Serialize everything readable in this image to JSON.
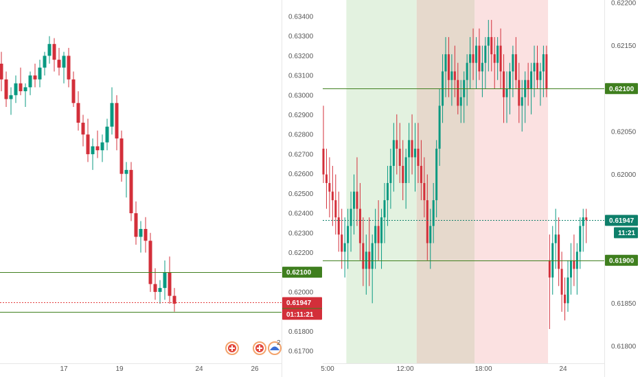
{
  "colors": {
    "up": "#089981",
    "down": "#d32f3a",
    "level": "#3f7f1e",
    "price_line_left": "#e23b3b",
    "price_line_right": "#0e7f6a",
    "session_1": "#e3f2e0",
    "session_2": "#e6d9cc",
    "session_3": "#fbe1e1",
    "axis_text": "#555555",
    "divider": "#e6e6e6"
  },
  "chart_data": [
    {
      "type": "candlestick",
      "panel": "left",
      "y_axis_ticks": [
        "0.63400",
        "0.63300",
        "0.63200",
        "0.63100",
        "0.63000",
        "0.62900",
        "0.62800",
        "0.62700",
        "0.62600",
        "0.62500",
        "0.62400",
        "0.62300",
        "0.62200",
        "0.62100",
        "0.62000",
        "0.61900",
        "0.61800",
        "0.61700"
      ],
      "x_axis_ticks": [
        "17",
        "19",
        "24",
        "26"
      ],
      "ylim": [
        0.6166,
        0.6346
      ],
      "candles": [
        [
          0.6322,
          0.6326,
          0.6308,
          0.6314
        ],
        [
          0.6314,
          0.6318,
          0.6305,
          0.6316
        ],
        [
          0.6316,
          0.6322,
          0.6302,
          0.6308
        ],
        [
          0.6308,
          0.6312,
          0.6294,
          0.6298
        ],
        [
          0.6298,
          0.6304,
          0.629,
          0.63
        ],
        [
          0.63,
          0.631,
          0.6296,
          0.6306
        ],
        [
          0.6306,
          0.6314,
          0.63,
          0.6302
        ],
        [
          0.6302,
          0.6306,
          0.6294,
          0.6304
        ],
        [
          0.6304,
          0.6312,
          0.63,
          0.631
        ],
        [
          0.631,
          0.6316,
          0.6304,
          0.6308
        ],
        [
          0.6308,
          0.6318,
          0.6304,
          0.6314
        ],
        [
          0.6314,
          0.6322,
          0.631,
          0.632
        ],
        [
          0.632,
          0.633,
          0.6316,
          0.6326
        ],
        [
          0.6326,
          0.6329,
          0.6312,
          0.6318
        ],
        [
          0.6318,
          0.6324,
          0.631,
          0.6314
        ],
        [
          0.6314,
          0.6322,
          0.6306,
          0.632
        ],
        [
          0.632,
          0.6324,
          0.6304,
          0.6308
        ],
        [
          0.6308,
          0.6312,
          0.6294,
          0.6296
        ],
        [
          0.6296,
          0.6302,
          0.6282,
          0.6286
        ],
        [
          0.6286,
          0.629,
          0.6274,
          0.628
        ],
        [
          0.628,
          0.6288,
          0.6266,
          0.627
        ],
        [
          0.627,
          0.6278,
          0.6262,
          0.6274
        ],
        [
          0.6274,
          0.6282,
          0.6268,
          0.6272
        ],
        [
          0.6272,
          0.628,
          0.6266,
          0.6276
        ],
        [
          0.6276,
          0.6288,
          0.6272,
          0.6284
        ],
        [
          0.6284,
          0.6304,
          0.628,
          0.6296
        ],
        [
          0.6296,
          0.63,
          0.6272,
          0.6278
        ],
        [
          0.6278,
          0.6282,
          0.6256,
          0.626
        ],
        [
          0.626,
          0.6266,
          0.6248,
          0.6262
        ],
        [
          0.6262,
          0.6266,
          0.6236,
          0.624
        ],
        [
          0.624,
          0.6246,
          0.6224,
          0.6228
        ],
        [
          0.6228,
          0.6236,
          0.622,
          0.6232
        ],
        [
          0.6232,
          0.6238,
          0.622,
          0.6226
        ],
        [
          0.6226,
          0.623,
          0.62,
          0.6204
        ],
        [
          0.6204,
          0.6212,
          0.6196,
          0.62
        ],
        [
          0.62,
          0.6206,
          0.6194,
          0.6202
        ],
        [
          0.6202,
          0.6216,
          0.6196,
          0.621
        ],
        [
          0.621,
          0.6218,
          0.6194,
          0.6198
        ],
        [
          0.6198,
          0.6202,
          0.619,
          0.6194
        ]
      ],
      "levels": [
        {
          "price": 0.621,
          "label": "0.62100"
        },
        {
          "price": 0.619,
          "label": "0.61900"
        }
      ],
      "current_price": {
        "price": 0.61947,
        "label": "0.61947",
        "countdown": "01:11:21"
      }
    },
    {
      "type": "candlestick",
      "panel": "right",
      "y_axis_ticks": [
        "0.62200",
        "0.62150",
        "0.62100",
        "0.62050",
        "0.62000",
        "0.61950",
        "0.61900",
        "0.61850",
        "0.61800"
      ],
      "x_axis_ticks": [
        "5:00",
        "12:00",
        "18:00",
        "24"
      ],
      "ylim": [
        0.61774,
        0.62208
      ],
      "sessions": [
        {
          "from": 8,
          "to": 31,
          "color_key": "session_1"
        },
        {
          "from": 31,
          "to": 50,
          "color_key": "session_2"
        },
        {
          "from": 50,
          "to": 74,
          "color_key": "session_3"
        }
      ],
      "candles": [
        [
          0.6203,
          0.6208,
          0.6199,
          0.62
        ],
        [
          0.62,
          0.6203,
          0.6196,
          0.6199
        ],
        [
          0.6199,
          0.6202,
          0.6195,
          0.6198
        ],
        [
          0.6198,
          0.6201,
          0.6194,
          0.6197
        ],
        [
          0.6197,
          0.62,
          0.6193,
          0.6195
        ],
        [
          0.6195,
          0.6198,
          0.6191,
          0.6193
        ],
        [
          0.6193,
          0.6196,
          0.6189,
          0.6191
        ],
        [
          0.6191,
          0.6195,
          0.6188,
          0.6192
        ],
        [
          0.6192,
          0.6196,
          0.6189,
          0.6194
        ],
        [
          0.6194,
          0.6198,
          0.6191,
          0.6196
        ],
        [
          0.6196,
          0.62,
          0.6193,
          0.6198
        ],
        [
          0.6198,
          0.6202,
          0.6194,
          0.6196
        ],
        [
          0.6196,
          0.6199,
          0.619,
          0.6192
        ],
        [
          0.6192,
          0.6195,
          0.6187,
          0.6189
        ],
        [
          0.6189,
          0.6193,
          0.6186,
          0.6191
        ],
        [
          0.6191,
          0.6195,
          0.6187,
          0.6189
        ],
        [
          0.6189,
          0.6193,
          0.6185,
          0.6192
        ],
        [
          0.6192,
          0.6196,
          0.6189,
          0.6194
        ],
        [
          0.6194,
          0.6197,
          0.619,
          0.6192
        ],
        [
          0.6192,
          0.6196,
          0.6189,
          0.6195
        ],
        [
          0.6195,
          0.6199,
          0.6192,
          0.6197
        ],
        [
          0.6197,
          0.6201,
          0.6194,
          0.6199
        ],
        [
          0.6199,
          0.6203,
          0.6196,
          0.6201
        ],
        [
          0.6201,
          0.6206,
          0.6198,
          0.6204
        ],
        [
          0.6204,
          0.6207,
          0.62,
          0.6203
        ],
        [
          0.6203,
          0.6206,
          0.6199,
          0.6201
        ],
        [
          0.6201,
          0.6204,
          0.6197,
          0.6199
        ],
        [
          0.6199,
          0.6203,
          0.6196,
          0.6202
        ],
        [
          0.6202,
          0.6206,
          0.6199,
          0.6204
        ],
        [
          0.6204,
          0.6207,
          0.62,
          0.6202
        ],
        [
          0.6202,
          0.6206,
          0.6198,
          0.6203
        ],
        [
          0.6203,
          0.6206,
          0.6199,
          0.6201
        ],
        [
          0.6201,
          0.6204,
          0.6197,
          0.6199
        ],
        [
          0.6199,
          0.6202,
          0.6195,
          0.6197
        ],
        [
          0.6197,
          0.62,
          0.619,
          0.6192
        ],
        [
          0.6192,
          0.6196,
          0.6189,
          0.6194
        ],
        [
          0.6194,
          0.6199,
          0.6192,
          0.6197
        ],
        [
          0.6197,
          0.6204,
          0.6195,
          0.6203
        ],
        [
          0.6203,
          0.621,
          0.6201,
          0.6208
        ],
        [
          0.6208,
          0.6214,
          0.6206,
          0.6212
        ],
        [
          0.6212,
          0.6216,
          0.6209,
          0.6214
        ],
        [
          0.6214,
          0.6216,
          0.6209,
          0.6211
        ],
        [
          0.6211,
          0.6214,
          0.6208,
          0.6212
        ],
        [
          0.6212,
          0.6215,
          0.6209,
          0.6211
        ],
        [
          0.6211,
          0.6213,
          0.6207,
          0.6208
        ],
        [
          0.6208,
          0.6211,
          0.6206,
          0.6209
        ],
        [
          0.6209,
          0.6212,
          0.6206,
          0.6211
        ],
        [
          0.6211,
          0.6214,
          0.6208,
          0.6213
        ],
        [
          0.6213,
          0.6216,
          0.621,
          0.6214
        ],
        [
          0.6214,
          0.6217,
          0.6211,
          0.6213
        ],
        [
          0.6213,
          0.6216,
          0.621,
          0.6215
        ],
        [
          0.6215,
          0.6217,
          0.6211,
          0.6212
        ],
        [
          0.6212,
          0.6215,
          0.6209,
          0.6213
        ],
        [
          0.6213,
          0.6216,
          0.621,
          0.6215
        ],
        [
          0.6215,
          0.6218,
          0.6212,
          0.6216
        ],
        [
          0.6216,
          0.6218,
          0.6212,
          0.6214
        ],
        [
          0.6214,
          0.6216,
          0.621,
          0.6213
        ],
        [
          0.6213,
          0.6216,
          0.6211,
          0.6215
        ],
        [
          0.6215,
          0.6217,
          0.621,
          0.6212
        ],
        [
          0.6212,
          0.6214,
          0.6206,
          0.6209
        ],
        [
          0.6209,
          0.6212,
          0.6206,
          0.621
        ],
        [
          0.621,
          0.6213,
          0.6207,
          0.6212
        ],
        [
          0.6212,
          0.6215,
          0.6209,
          0.6214
        ],
        [
          0.6214,
          0.6216,
          0.621,
          0.6211
        ],
        [
          0.6211,
          0.6213,
          0.6206,
          0.6208
        ],
        [
          0.6208,
          0.6211,
          0.6205,
          0.6209
        ],
        [
          0.6209,
          0.6212,
          0.6206,
          0.6211
        ],
        [
          0.6211,
          0.6213,
          0.6208,
          0.621
        ],
        [
          0.621,
          0.6213,
          0.6207,
          0.6212
        ],
        [
          0.6212,
          0.6215,
          0.6209,
          0.6213
        ],
        [
          0.6213,
          0.6215,
          0.621,
          0.6211
        ],
        [
          0.6211,
          0.6213,
          0.6208,
          0.6212
        ],
        [
          0.6212,
          0.6215,
          0.6209,
          0.6214
        ],
        [
          0.6214,
          0.6215,
          0.6209,
          0.621
        ],
        [
          0.619,
          0.6193,
          0.6182,
          0.6188
        ],
        [
          0.6188,
          0.6194,
          0.6186,
          0.6192
        ],
        [
          0.6192,
          0.6196,
          0.6189,
          0.6193
        ],
        [
          0.6193,
          0.6195,
          0.6187,
          0.6189
        ],
        [
          0.6189,
          0.6191,
          0.6184,
          0.6186
        ],
        [
          0.6186,
          0.6188,
          0.6183,
          0.6185
        ],
        [
          0.6185,
          0.619,
          0.6184,
          0.6188
        ],
        [
          0.6188,
          0.6192,
          0.6186,
          0.619
        ],
        [
          0.619,
          0.6193,
          0.6187,
          0.6189
        ],
        [
          0.6189,
          0.6192,
          0.6186,
          0.6191
        ],
        [
          0.6191,
          0.6195,
          0.6189,
          0.6194
        ],
        [
          0.6194,
          0.6196,
          0.6191,
          0.6195
        ],
        [
          0.6195,
          0.6196,
          0.6192,
          0.61947
        ]
      ],
      "levels": [
        {
          "price": 0.621,
          "label": "0.62100"
        },
        {
          "price": 0.619,
          "label": "0.61900"
        }
      ],
      "current_price": {
        "price": 0.61947,
        "label": "0.61947",
        "countdown": "11:21"
      }
    }
  ]
}
